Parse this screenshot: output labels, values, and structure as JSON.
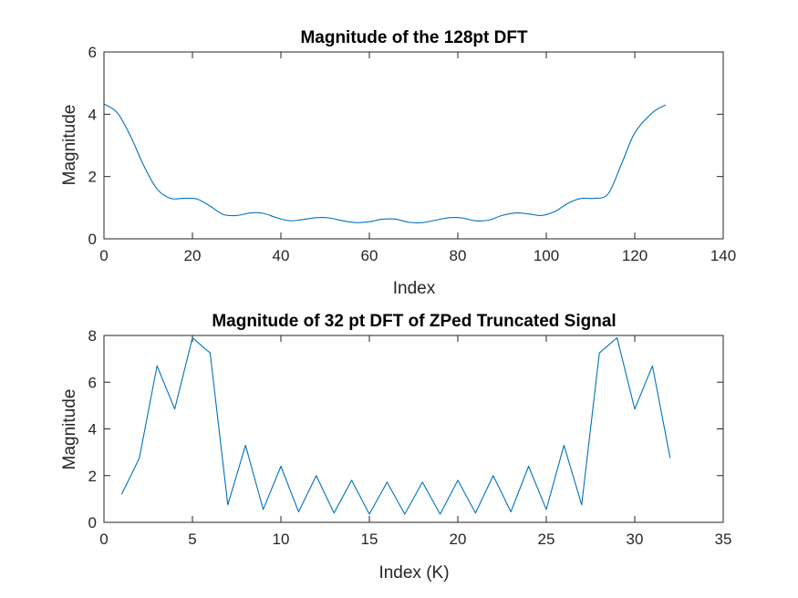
{
  "chart_data": [
    {
      "type": "line",
      "title": "Magnitude of the 128pt DFT",
      "xlabel": "Index",
      "ylabel": "Magnitude",
      "xlim": [
        0,
        140
      ],
      "ylim": [
        0,
        6
      ],
      "xticks": [
        "0",
        "20",
        "40",
        "60",
        "80",
        "100",
        "120",
        "140"
      ],
      "yticks": [
        "0",
        "2",
        "4",
        "6"
      ],
      "grid": false,
      "color": "#0072BD",
      "series": [
        {
          "x": [
            0,
            3,
            6,
            9,
            12,
            15,
            18,
            21,
            24,
            27,
            30,
            33,
            36,
            39,
            42,
            45,
            48,
            51,
            54,
            57,
            60,
            63,
            66,
            69,
            72,
            75,
            78,
            81,
            84,
            87,
            90,
            93,
            96,
            99,
            102,
            105,
            108,
            111,
            114,
            117,
            120,
            124,
            127
          ],
          "values": [
            4.33,
            4.05,
            3.3,
            2.35,
            1.6,
            1.3,
            1.3,
            1.28,
            1.05,
            0.78,
            0.75,
            0.83,
            0.82,
            0.68,
            0.58,
            0.62,
            0.68,
            0.67,
            0.58,
            0.52,
            0.55,
            0.63,
            0.63,
            0.53,
            0.52,
            0.6,
            0.68,
            0.67,
            0.58,
            0.6,
            0.75,
            0.83,
            0.8,
            0.75,
            0.88,
            1.15,
            1.3,
            1.3,
            1.45,
            2.4,
            3.4,
            4.05,
            4.3
          ]
        }
      ]
    },
    {
      "type": "line",
      "title": "Magnitude of 32 pt DFT of ZPed Truncated Signal",
      "xlabel": "Index (K)",
      "ylabel": "Magnitude",
      "xlim": [
        0,
        35
      ],
      "ylim": [
        0,
        8
      ],
      "xticks": [
        "0",
        "5",
        "10",
        "15",
        "20",
        "25",
        "30",
        "35"
      ],
      "yticks": [
        "0",
        "2",
        "4",
        "6",
        "8"
      ],
      "grid": false,
      "color": "#0072BD",
      "series": [
        {
          "x": [
            1,
            2,
            3,
            4,
            5,
            6,
            7,
            8,
            9,
            10,
            11,
            12,
            13,
            14,
            15,
            16,
            17,
            18,
            19,
            20,
            21,
            22,
            23,
            24,
            25,
            26,
            27,
            28,
            29,
            30,
            31,
            32
          ],
          "values": [
            1.2,
            2.75,
            6.7,
            4.85,
            7.9,
            7.25,
            0.75,
            3.3,
            0.55,
            2.4,
            0.45,
            2.0,
            0.4,
            1.8,
            0.35,
            1.72,
            0.35,
            1.72,
            0.35,
            1.8,
            0.4,
            2.0,
            0.45,
            2.4,
            0.55,
            3.3,
            0.75,
            7.25,
            7.9,
            4.85,
            6.7,
            2.75
          ]
        }
      ]
    }
  ]
}
